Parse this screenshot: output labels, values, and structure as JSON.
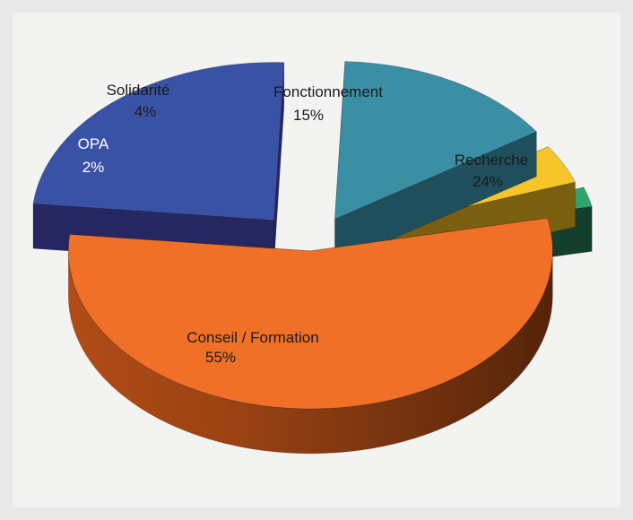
{
  "chart_data": {
    "type": "pie",
    "style": "3d-exploded",
    "slices": [
      {
        "label": "Conseil / Formation",
        "value": 55,
        "display": "55%",
        "color": "#f07028",
        "side": "#8a3a12",
        "text_color": "#1a1a1a"
      },
      {
        "label": "Recherche",
        "value": 24,
        "display": "24%",
        "color": "#3a52a6",
        "side": "#262760",
        "text_color": "#1a1a1a"
      },
      {
        "label": "Fonctionnement",
        "value": 15,
        "display": "15%",
        "color": "#3a8fa4",
        "side": "#1f4f5c",
        "text_color": "#1a1a1a"
      },
      {
        "label": "Solidarité",
        "value": 4,
        "display": "4%",
        "color": "#f6c52a",
        "side": "#7a5f10",
        "text_color": "#1a1a1a"
      },
      {
        "label": "OPA",
        "value": 2,
        "display": "2%",
        "color": "#2fa46e",
        "side": "#143f2c",
        "text_color": "#ffffff"
      }
    ],
    "legend": "none"
  }
}
